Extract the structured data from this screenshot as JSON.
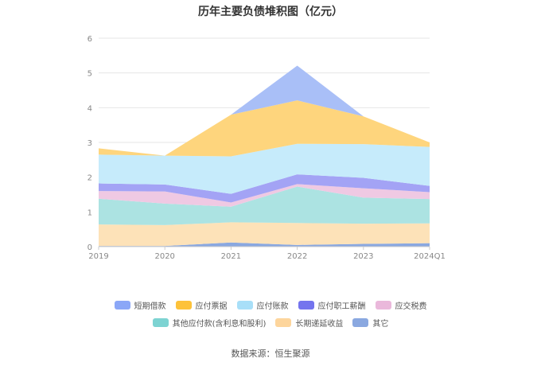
{
  "chart_data": {
    "type": "area",
    "stacked": true,
    "title": "历年主要负债堆积图（亿元）",
    "xlabel": "",
    "ylabel": "",
    "categories": [
      "2019",
      "2020",
      "2021",
      "2022",
      "2023",
      "2024Q1"
    ],
    "ylim": [
      0,
      6
    ],
    "yticks": [
      0,
      1,
      2,
      3,
      4,
      5,
      6
    ],
    "grid": true,
    "legend_position": "bottom",
    "series": [
      {
        "name": "其它",
        "color": "#8aa8e0",
        "values": [
          0.02,
          0.02,
          0.12,
          0.05,
          0.08,
          0.1
        ]
      },
      {
        "name": "长期递延收益",
        "color": "#fde2b8",
        "values": [
          0.62,
          0.6,
          0.58,
          0.63,
          0.58,
          0.57
        ]
      },
      {
        "name": "其他应付款(含利息和股利)",
        "color": "#ace3e2",
        "values": [
          0.74,
          0.62,
          0.45,
          1.05,
          0.75,
          0.7
        ]
      },
      {
        "name": "应交税费",
        "color": "#efc9e3",
        "values": [
          0.22,
          0.35,
          0.12,
          0.07,
          0.27,
          0.2
        ]
      },
      {
        "name": "应付职工薪酬",
        "color": "#a3a3f5",
        "values": [
          0.22,
          0.2,
          0.25,
          0.28,
          0.3,
          0.18
        ]
      },
      {
        "name": "应付账款",
        "color": "#c6ebfb",
        "values": [
          0.83,
          0.83,
          1.08,
          0.88,
          0.97,
          1.12
        ]
      },
      {
        "name": "应付票据",
        "color": "#fed57d",
        "values": [
          0.18,
          0.0,
          1.2,
          1.25,
          0.8,
          0.13
        ]
      },
      {
        "name": "短期借款",
        "color": "#a9bff7",
        "values": [
          0.0,
          0.0,
          0.0,
          1.0,
          0.0,
          0.0
        ]
      }
    ]
  },
  "legend": {
    "row1": [
      {
        "label": "短期借款",
        "color": "#8ba7f7"
      },
      {
        "label": "应付票据",
        "color": "#fdc23a"
      },
      {
        "label": "应付账款",
        "color": "#a8dff8"
      },
      {
        "label": "应付职工薪酬",
        "color": "#7474ee"
      },
      {
        "label": "应交税费",
        "color": "#eab8db"
      }
    ],
    "row2": [
      {
        "label": "其他应付款(含利息和股利)",
        "color": "#7dd3d2"
      },
      {
        "label": "长期递延收益",
        "color": "#fdd59c"
      },
      {
        "label": "其它",
        "color": "#8aa8e0"
      }
    ]
  },
  "source": "数据来源：恒生聚源"
}
